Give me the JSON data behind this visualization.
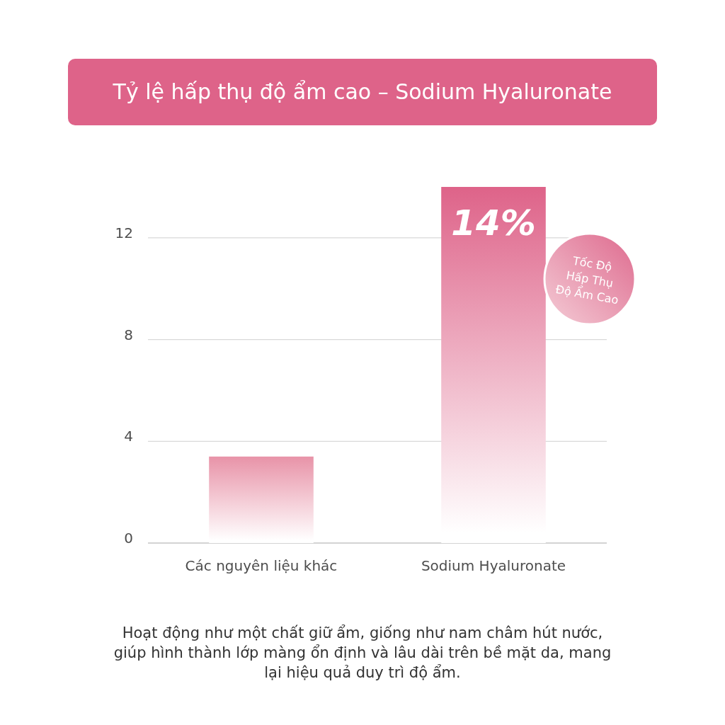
{
  "chart_data": {
    "type": "bar",
    "title": "Tỷ lệ hấp thụ độ ẩm cao – Sodium Hyaluronate",
    "categories": [
      "Các nguyên liệu khác",
      "Sodium Hyaluronate"
    ],
    "values": [
      3.4,
      14
    ],
    "colors": [
      "#e893a8",
      "#de6389"
    ],
    "value_labels": [
      null,
      "14%"
    ],
    "ylim": [
      0,
      14
    ],
    "yticks": [
      0,
      4,
      8,
      12
    ],
    "grid": "y",
    "annotations": [
      "Tốc Độ Hấp Thụ Độ Ẩm Cao",
      "Hoạt động như một chất giữ ẩm, giống như nam châm hút nước, giúp hình thành lớp màng ổn định và lâu dài trên bề mặt da, mang lại hiệu quả duy trì độ ẩm."
    ]
  }
}
